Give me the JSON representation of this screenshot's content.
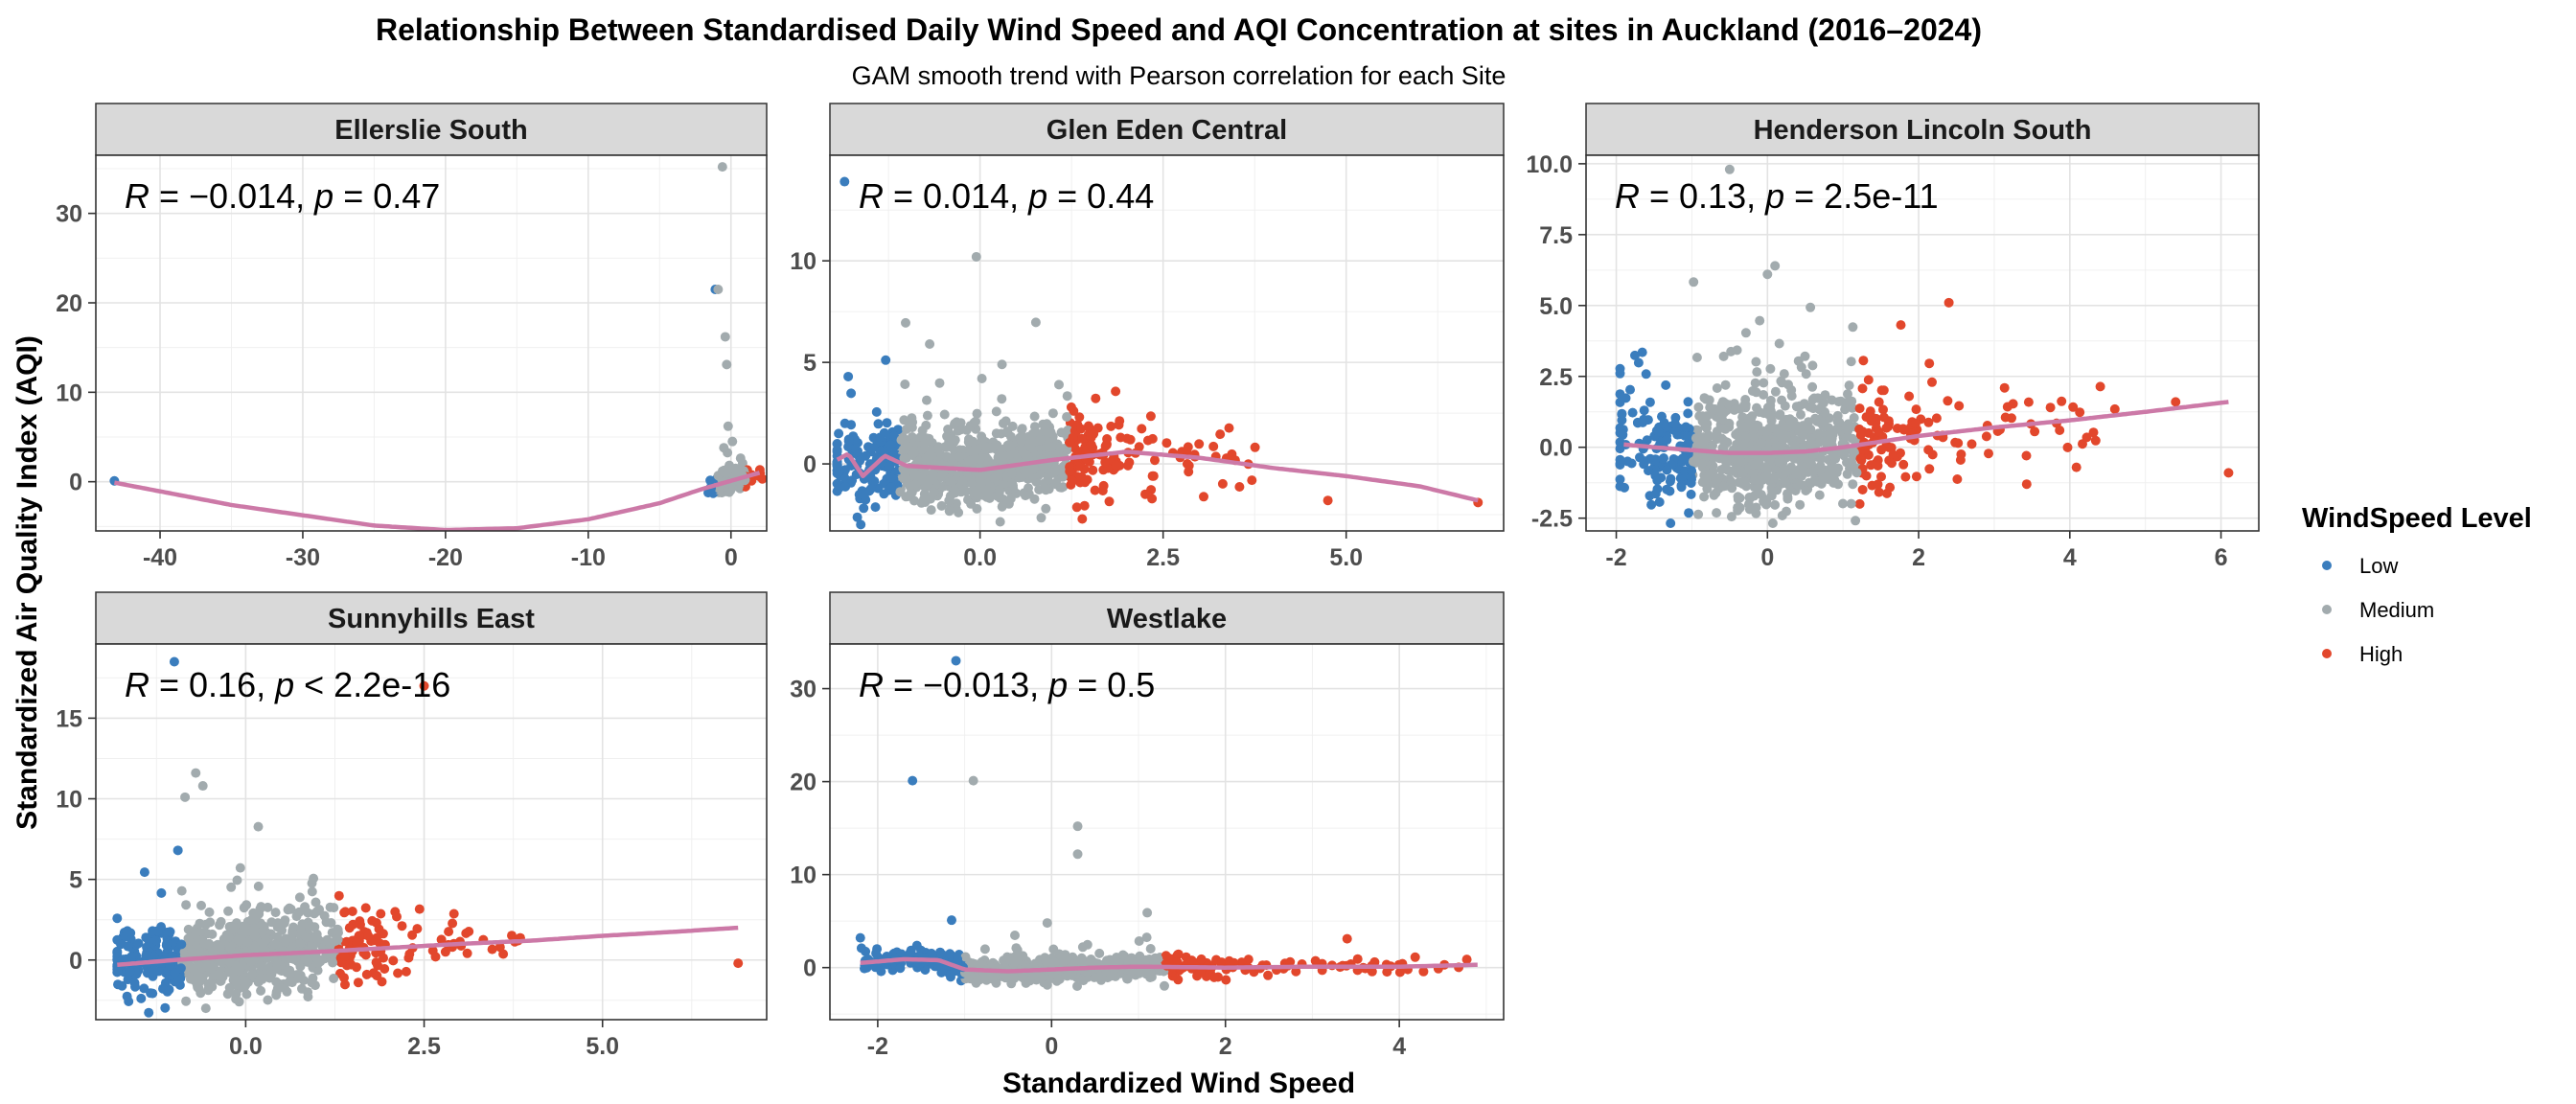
{
  "figure": {
    "title": "Relationship Between Standardised Daily Wind Speed and AQI Concentration at sites in Auckland (2016–2024)",
    "subtitle": "GAM smooth trend with Pearson correlation for each Site",
    "xlabel": "Standardized Wind Speed",
    "ylabel": "Standardized Air Quality Index (AQI)"
  },
  "legend": {
    "title": "WindSpeed Level",
    "position": "right",
    "items": [
      {
        "label": "Low",
        "color": "#3a7dbd"
      },
      {
        "label": "Medium",
        "color": "#a2abae"
      },
      {
        "label": "High",
        "color": "#e2472c"
      }
    ]
  },
  "colors": {
    "Low": "#3a7dbd",
    "Medium": "#a2abae",
    "High": "#e2472c",
    "smooth": "#cc79a7",
    "strip": "#d9d9d9"
  },
  "chart_data": [
    {
      "type": "scatter",
      "panel": "Ellerslie South",
      "annotation": {
        "R": "−0.014",
        "p_op": "=",
        "p": "0.47"
      },
      "xlim": [
        -44.5,
        2.5
      ],
      "ylim": [
        -5.5,
        36.5
      ],
      "xticks": [
        -40,
        -30,
        -20,
        -10,
        0
      ],
      "xtick_labels": [
        "-40",
        "-30",
        "-20",
        "-10",
        "0"
      ],
      "yticks": [
        0,
        10,
        20,
        30
      ],
      "ytick_labels": [
        "0",
        "10",
        "20",
        "30"
      ],
      "low_thr": -0.9,
      "high_thr": 1.0,
      "outliers": [
        [
          -43.2,
          0.1
        ],
        [
          -0.6,
          35.2
        ],
        [
          -1.1,
          21.5
        ],
        [
          -0.9,
          21.5
        ],
        [
          -0.4,
          16.2
        ],
        [
          -0.3,
          13.1
        ],
        [
          -0.2,
          6.2
        ],
        [
          0.1,
          4.5
        ],
        [
          -0.5,
          3.8
        ]
      ],
      "smooth": [
        [
          -43.2,
          -0.1
        ],
        [
          -35,
          -2.6
        ],
        [
          -25,
          -4.9
        ],
        [
          -20,
          -5.4
        ],
        [
          -15,
          -5.2
        ],
        [
          -10,
          -4.2
        ],
        [
          -5,
          -2.4
        ],
        [
          -2,
          -0.8
        ],
        [
          0,
          0.1
        ],
        [
          2,
          1.0
        ]
      ]
    },
    {
      "type": "scatter",
      "panel": "Glen Eden Central",
      "annotation": {
        "R": "0.014",
        "p_op": "=",
        "p": "0.44"
      },
      "xlim": [
        -2.05,
        7.15
      ],
      "ylim": [
        -3.3,
        15.2
      ],
      "xticks": [
        0,
        2.5,
        5
      ],
      "xtick_labels": [
        "0.0",
        "2.5",
        "5.0"
      ],
      "yticks": [
        0,
        5,
        10
      ],
      "ytick_labels": [
        "0",
        "5",
        "10"
      ],
      "low_thr": -1.1,
      "high_thr": 1.2,
      "outliers": [
        [
          -1.85,
          13.9
        ],
        [
          -0.05,
          10.2
        ],
        [
          0.3,
          4.9
        ],
        [
          -1.8,
          4.3
        ],
        [
          4.75,
          -1.8
        ],
        [
          6.8,
          -1.9
        ]
      ],
      "smooth": [
        [
          -1.95,
          0.2
        ],
        [
          -1.8,
          0.5
        ],
        [
          -1.6,
          -0.6
        ],
        [
          -1.3,
          0.4
        ],
        [
          -1.0,
          -0.1
        ],
        [
          0,
          -0.3
        ],
        [
          1.0,
          0.2
        ],
        [
          2.0,
          0.6
        ],
        [
          3.0,
          0.3
        ],
        [
          4.0,
          -0.2
        ],
        [
          5.0,
          -0.6
        ],
        [
          6.0,
          -1.1
        ],
        [
          6.8,
          -1.8
        ]
      ]
    },
    {
      "type": "scatter",
      "panel": "Henderson Lincoln South",
      "annotation": {
        "R": "0.13",
        "p_op": "=",
        "p": "2.5e-11"
      },
      "xlim": [
        -2.4,
        6.5
      ],
      "ylim": [
        -2.95,
        10.3
      ],
      "xticks": [
        -2,
        0,
        2,
        4,
        6
      ],
      "xtick_labels": [
        "-2",
        "0",
        "2",
        "4",
        "6"
      ],
      "yticks": [
        -2.5,
        0,
        2.5,
        5,
        7.5,
        10
      ],
      "ytick_labels": [
        "-2.5",
        "0.0",
        "2.5",
        "5.0",
        "7.5",
        "10.0"
      ],
      "low_thr": -1.0,
      "high_thr": 1.2,
      "outliers": [
        [
          -0.5,
          9.8
        ],
        [
          0.1,
          6.4
        ],
        [
          0.0,
          6.1
        ],
        [
          2.4,
          5.1
        ],
        [
          5.4,
          1.6
        ],
        [
          6.1,
          -0.9
        ]
      ],
      "smooth": [
        [
          -1.9,
          0.1
        ],
        [
          -1.5,
          0.0
        ],
        [
          -1.0,
          -0.1
        ],
        [
          -0.5,
          -0.2
        ],
        [
          0,
          -0.2
        ],
        [
          0.5,
          -0.15
        ],
        [
          1.0,
          0.0
        ],
        [
          1.5,
          0.2
        ],
        [
          2.0,
          0.4
        ],
        [
          3.0,
          0.7
        ],
        [
          4.0,
          0.95
        ],
        [
          5.0,
          1.25
        ],
        [
          6.1,
          1.6
        ]
      ]
    },
    {
      "type": "scatter",
      "panel": "Sunnyhills East",
      "annotation": {
        "R": "0.16",
        "p_op": "<",
        "p": "2.2e-16"
      },
      "xlim": [
        -2.1,
        7.3
      ],
      "ylim": [
        -3.7,
        19.6
      ],
      "xticks": [
        0,
        2.5,
        5
      ],
      "xtick_labels": [
        "0.0",
        "2.5",
        "5.0"
      ],
      "yticks": [
        0,
        5,
        10,
        15
      ],
      "ytick_labels": [
        "0",
        "5",
        "10",
        "15"
      ],
      "low_thr": -0.9,
      "high_thr": 1.3,
      "outliers": [
        [
          -1.0,
          18.5
        ],
        [
          2.5,
          17.0
        ],
        [
          -0.7,
          11.6
        ],
        [
          -0.6,
          10.8
        ],
        [
          -0.85,
          10.1
        ],
        [
          -0.95,
          6.8
        ],
        [
          6.9,
          -0.2
        ]
      ],
      "smooth": [
        [
          -1.8,
          -0.3
        ],
        [
          -1.0,
          0.0
        ],
        [
          0,
          0.3
        ],
        [
          1.0,
          0.5
        ],
        [
          2.0,
          0.75
        ],
        [
          3.0,
          1.0
        ],
        [
          4.0,
          1.2
        ],
        [
          5.0,
          1.5
        ],
        [
          6.0,
          1.75
        ],
        [
          6.9,
          2.0
        ]
      ]
    },
    {
      "type": "scatter",
      "panel": "Westlake",
      "annotation": {
        "R": "−0.013",
        "p_op": "=",
        "p": "0.5"
      },
      "xlim": [
        -2.55,
        5.2
      ],
      "ylim": [
        -5.6,
        34.8
      ],
      "xticks": [
        -2,
        0,
        2,
        4
      ],
      "xtick_labels": [
        "-2",
        "0",
        "2",
        "4"
      ],
      "yticks": [
        0,
        10,
        20,
        30
      ],
      "ytick_labels": [
        "0",
        "10",
        "20",
        "30"
      ],
      "low_thr": -1.0,
      "high_thr": 1.3,
      "outliers": [
        [
          -1.1,
          33.0
        ],
        [
          -1.6,
          20.1
        ],
        [
          -0.9,
          20.1
        ],
        [
          0.3,
          15.2
        ],
        [
          0.3,
          12.2
        ],
        [
          1.1,
          5.9
        ],
        [
          -2.2,
          3.2
        ],
        [
          -1.15,
          5.1
        ],
        [
          -0.05,
          4.8
        ],
        [
          3.4,
          3.1
        ]
      ],
      "smooth": [
        [
          -2.2,
          0.5
        ],
        [
          -1.7,
          0.9
        ],
        [
          -1.3,
          0.8
        ],
        [
          -1.0,
          -0.2
        ],
        [
          -0.5,
          -0.4
        ],
        [
          0,
          -0.2
        ],
        [
          0.5,
          0.0
        ],
        [
          1.0,
          0.1
        ],
        [
          2.0,
          0.0
        ],
        [
          3.0,
          0.1
        ],
        [
          4.0,
          0.1
        ],
        [
          4.9,
          0.3
        ]
      ]
    }
  ]
}
